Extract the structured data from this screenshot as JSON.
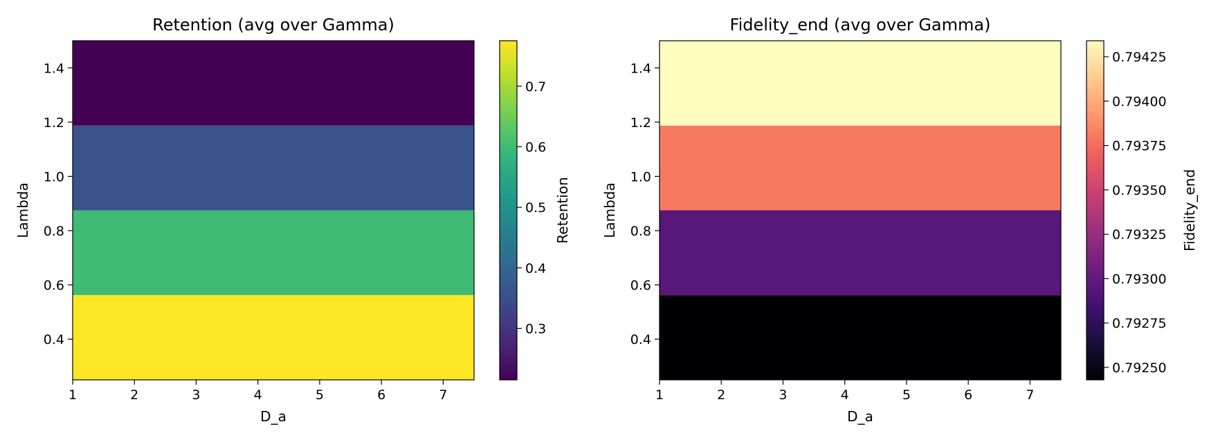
{
  "chart_data": [
    {
      "type": "heatmap",
      "title": "Retention (avg over Gamma)",
      "xlabel": "D_a",
      "ylabel": "Lambda",
      "xlim": [
        1,
        7.5
      ],
      "ylim": [
        0.25,
        1.5
      ],
      "xticks": [
        1,
        2,
        3,
        4,
        5,
        6,
        7
      ],
      "xtick_labels": [
        "1",
        "2",
        "3",
        "4",
        "5",
        "6",
        "7"
      ],
      "yticks": [
        0.4,
        0.6,
        0.8,
        1.0,
        1.2,
        1.4
      ],
      "ytick_labels": [
        "0.4",
        "0.6",
        "0.8",
        "1.0",
        "1.2",
        "1.4"
      ],
      "bands": [
        {
          "y0": 0.25,
          "y1": 0.5625,
          "value": 0.775
        },
        {
          "y0": 0.5625,
          "y1": 0.875,
          "value": 0.6
        },
        {
          "y0": 0.875,
          "y1": 1.1875,
          "value": 0.36
        },
        {
          "y0": 1.1875,
          "y1": 1.5,
          "value": 0.215
        }
      ],
      "colormap": "viridis",
      "colorbar": {
        "label": "Retention",
        "range": [
          0.215,
          0.775
        ],
        "ticks": [
          0.3,
          0.4,
          0.5,
          0.6,
          0.7
        ],
        "tick_labels": [
          "0.3",
          "0.4",
          "0.5",
          "0.6",
          "0.7"
        ]
      }
    },
    {
      "type": "heatmap",
      "title": "Fidelity_end (avg over Gamma)",
      "xlabel": "D_a",
      "ylabel": "Lambda",
      "xlim": [
        1,
        7.5
      ],
      "ylim": [
        0.25,
        1.5
      ],
      "xticks": [
        1,
        2,
        3,
        4,
        5,
        6,
        7
      ],
      "xtick_labels": [
        "1",
        "2",
        "3",
        "4",
        "5",
        "6",
        "7"
      ],
      "yticks": [
        0.4,
        0.6,
        0.8,
        1.0,
        1.2,
        1.4
      ],
      "ytick_labels": [
        "0.4",
        "0.6",
        "0.8",
        "1.0",
        "1.2",
        "1.4"
      ],
      "bands": [
        {
          "y0": 0.25,
          "y1": 0.5625,
          "value": 0.79243
        },
        {
          "y0": 0.5625,
          "y1": 0.875,
          "value": 0.79295
        },
        {
          "y0": 0.875,
          "y1": 1.1875,
          "value": 0.7938
        },
        {
          "y0": 1.1875,
          "y1": 1.5,
          "value": 0.79434
        }
      ],
      "colormap": "magma",
      "colorbar": {
        "label": "Fidelity_end",
        "range": [
          0.79243,
          0.79434
        ],
        "ticks": [
          0.7925,
          0.79275,
          0.793,
          0.79325,
          0.7935,
          0.79375,
          0.794,
          0.79425
        ],
        "tick_labels": [
          "0.79250",
          "0.79275",
          "0.79300",
          "0.79325",
          "0.79350",
          "0.79375",
          "0.79400",
          "0.79425"
        ]
      }
    }
  ]
}
